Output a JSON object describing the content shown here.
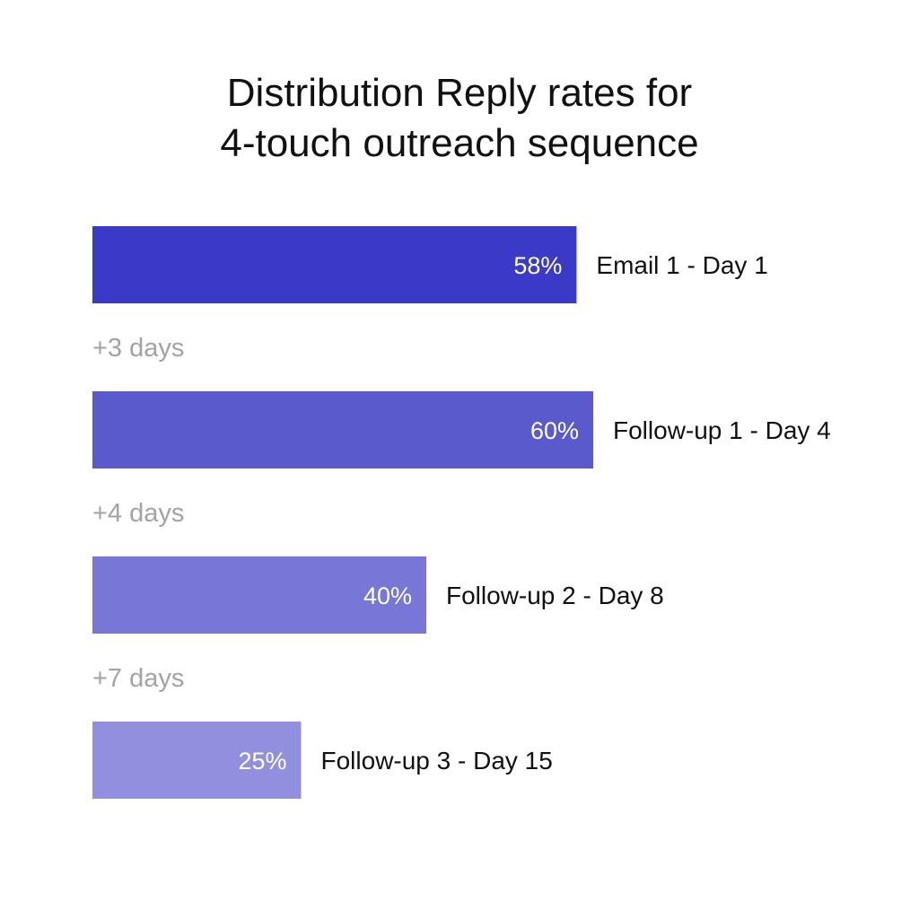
{
  "chart_data": {
    "type": "bar",
    "orientation": "horizontal",
    "title": [
      "Distribution Reply rates for",
      "4-touch outreach sequence"
    ],
    "categories": [
      "Email 1 - Day 1",
      "Follow-up 1 - Day 4",
      "Follow-up 2 - Day 8",
      "Follow-up 3 - Day 15"
    ],
    "values": [
      58,
      60,
      40,
      25
    ],
    "value_labels": [
      "58%",
      "60%",
      "40%",
      "25%"
    ],
    "gap_labels": [
      "+3 days",
      "+4 days",
      "+7 days"
    ],
    "bar_colors": [
      "#3b39c8",
      "#5b5acd",
      "#7876d6",
      "#918fde"
    ],
    "xlabel": "",
    "ylabel": "",
    "grid": false,
    "legend": "none"
  }
}
